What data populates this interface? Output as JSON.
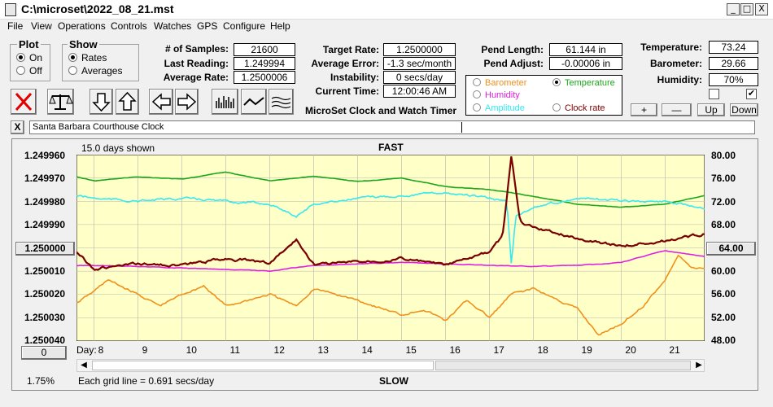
{
  "window": {
    "title": "C:\\microset\\2022_08_21.mst",
    "min": "_",
    "max": "□",
    "close": "X"
  },
  "menu": [
    "File",
    "View",
    "Operations",
    "Controls",
    "Watches",
    "GPS",
    "Configure",
    "Help"
  ],
  "plot_group": {
    "title": "Plot",
    "on": "On",
    "off": "Off"
  },
  "show_group": {
    "title": "Show",
    "rates": "Rates",
    "averages": "Averages"
  },
  "stats": {
    "samples_label": "# of Samples:",
    "samples": "21600",
    "last_label": "Last Reading:",
    "last": "1.249994",
    "avg_label": "Average Rate:",
    "avg": "1.2500006"
  },
  "target": {
    "target_label": "Target Rate:",
    "target": "1.2500000",
    "err_label": "Average Error:",
    "err": "-1.3 sec/month",
    "inst_label": "Instability:",
    "inst": "0 secs/day",
    "time_label": "Current Time:",
    "time": "12:00:46 AM"
  },
  "pend": {
    "len_label": "Pend Length:",
    "len": "61.144 in",
    "adj_label": "Pend Adjust:",
    "adj": "-0.00006 in"
  },
  "env": {
    "temp_label": "Temperature:",
    "temp": "73.24",
    "baro_label": "Barometer:",
    "baro": "29.66",
    "hum_label": "Humidity:",
    "hum": "70%"
  },
  "legend": {
    "barometer": "Barometer",
    "temperature": "Temperature",
    "humidity": "Humidity",
    "amplitude": "Amplitude",
    "clock_rate": "Clock rate"
  },
  "app_title": "MicroSet Clock and Watch Timer",
  "adjust_buttons": {
    "plus": "+",
    "minus": "—",
    "up": "Up",
    "down": "Down"
  },
  "tag": {
    "close": "X",
    "text": "Santa Barbara Courthouse Clock"
  },
  "chart": {
    "days_shown": "15.0 days shown",
    "fast": "FAST",
    "slow": "SLOW",
    "grid_note": "Each grid line = 0.691 secs/day",
    "left_ticks": [
      "1.249960",
      "1.249970",
      "1.249980",
      "1.249990",
      "1.250000",
      "1.250010",
      "1.250020",
      "1.250030",
      "1.250040"
    ],
    "right_ticks": [
      "80.00",
      "76.00",
      "72.00",
      "68.00",
      "64.00",
      "60.00",
      "56.00",
      "52.00",
      "48.00"
    ],
    "center_left": "1.250000",
    "center_right": "64.00",
    "day_label": "Day:",
    "days": [
      "8",
      "9",
      "10",
      "11",
      "12",
      "13",
      "14",
      "15",
      "16",
      "17",
      "18",
      "19",
      "20",
      "21"
    ],
    "zero_btn": "0",
    "percent": "1.75%"
  },
  "colors": {
    "plot_bg": "#ffffc8",
    "grid": "#b4b4b4",
    "temperature": "#1aa61a",
    "amplitude": "#36e8f0",
    "clock_rate": "#7a0000",
    "humidity": "#e020e0",
    "barometer": "#f0901c"
  },
  "chart_data": {
    "type": "line",
    "x_label": "Day",
    "x_range": [
      7.6,
      21.9
    ],
    "left_axis": {
      "range": [
        1.24996,
        1.25004
      ],
      "inverted": true
    },
    "right_axis": {
      "range": [
        48,
        80
      ]
    },
    "series": [
      {
        "name": "Temperature",
        "axis": "right",
        "x": [
          7.6,
          8,
          9,
          10,
          11,
          12,
          13,
          14,
          15,
          16,
          17,
          17.5,
          18,
          19,
          20,
          21,
          21.9
        ],
        "y": [
          76.2,
          75.5,
          76.2,
          75.8,
          77.0,
          75.5,
          76.3,
          75.4,
          76.0,
          74.5,
          74.0,
          73.5,
          72.8,
          71.5,
          71.0,
          71.5,
          73.0
        ]
      },
      {
        "name": "Amplitude",
        "axis": "right",
        "x": [
          7.6,
          8,
          9,
          10,
          11,
          12,
          12.6,
          13,
          14,
          15,
          16,
          17,
          17.4,
          17.5,
          17.6,
          18,
          19,
          20,
          21,
          21.9
        ],
        "y": [
          73.0,
          72.5,
          72.0,
          72.5,
          72.0,
          71.5,
          69.5,
          71.5,
          72.5,
          73.0,
          73.5,
          72.5,
          72.0,
          61.0,
          69.5,
          71.0,
          72.5,
          72.0,
          72.0,
          71.0
        ]
      },
      {
        "name": "Clock rate",
        "axis": "left",
        "x": [
          7.6,
          8,
          9,
          10,
          11,
          12,
          12.6,
          13,
          14,
          15,
          16,
          17,
          17.3,
          17.5,
          17.7,
          18,
          19,
          20,
          21,
          21.9
        ],
        "y": [
          1.2500015,
          1.250009,
          1.250007,
          1.2500075,
          1.2500045,
          1.2500065,
          1.2499965,
          1.250007,
          1.250006,
          1.2500045,
          1.2500075,
          1.250002,
          1.249995,
          1.249961,
          1.249989,
          1.249991,
          1.249996,
          1.249999,
          1.249997,
          1.249994
        ]
      },
      {
        "name": "Humidity",
        "axis": "right",
        "x": [
          7.6,
          9,
          11,
          12,
          13,
          15,
          17,
          18,
          19,
          20,
          21,
          21.9
        ],
        "y": [
          61.0,
          60.8,
          60.3,
          60.0,
          61.0,
          61.5,
          61.0,
          60.8,
          61.0,
          61.5,
          63.5,
          62.5
        ]
      },
      {
        "name": "Barometer",
        "axis": "right",
        "x": [
          7.6,
          8,
          8.3,
          9,
          9.5,
          10,
          10.5,
          11,
          12,
          12.6,
          13,
          14,
          15,
          15.5,
          16,
          16.5,
          17,
          17.5,
          18,
          19,
          19.5,
          20,
          20.5,
          21,
          21.3,
          21.6,
          21.9
        ],
        "y": [
          54.5,
          56.5,
          58.5,
          56.0,
          54.0,
          56.0,
          57.5,
          54.0,
          56.0,
          54.0,
          57.0,
          55.0,
          52.5,
          53.5,
          51.5,
          55.0,
          52.0,
          56.0,
          57.0,
          53.5,
          49.0,
          51.0,
          54.0,
          58.5,
          63.0,
          60.5,
          60.5
        ]
      }
    ]
  }
}
